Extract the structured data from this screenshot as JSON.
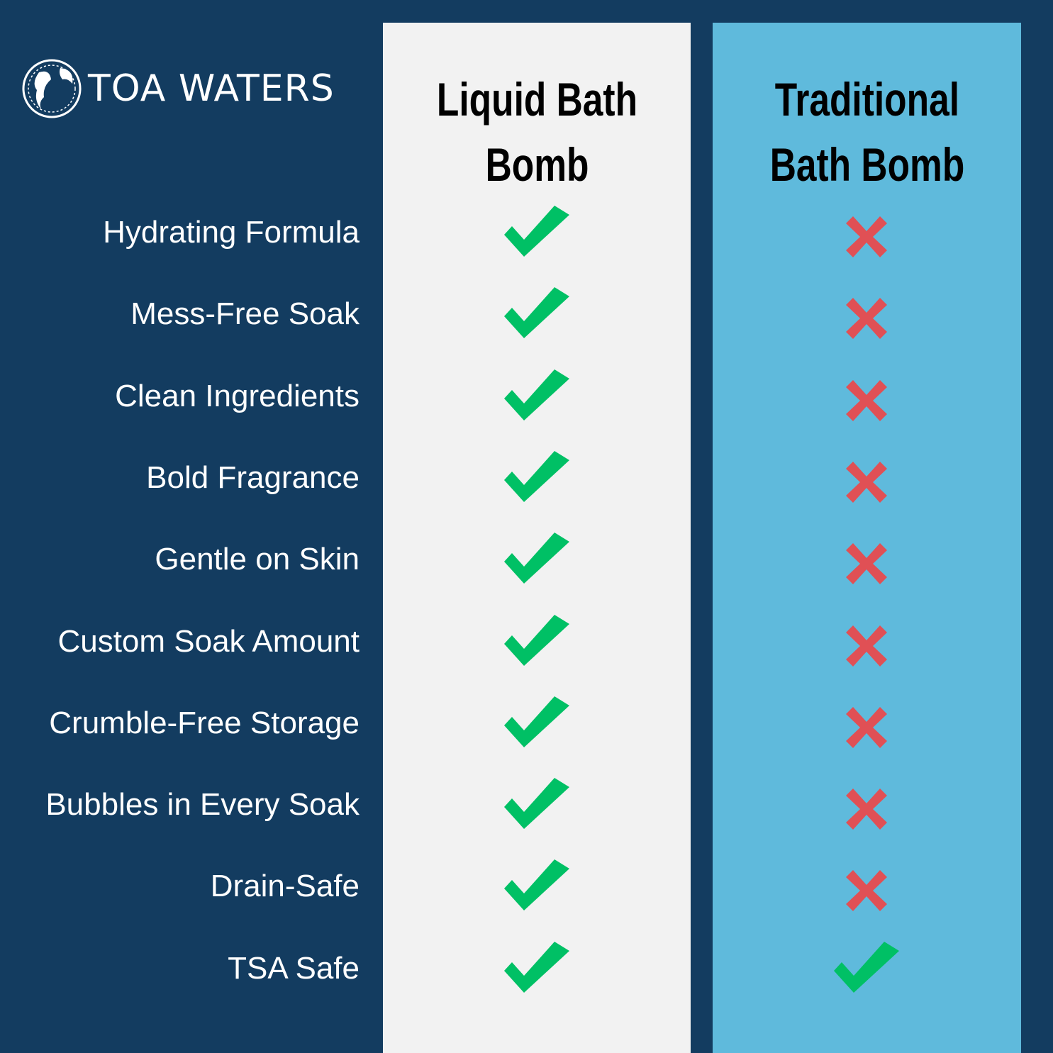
{
  "brand": {
    "name": "TOA WATERS"
  },
  "columns": [
    {
      "title_line1": "Liquid Bath",
      "title_line2": "Bomb"
    },
    {
      "title_line1": "Traditional",
      "title_line2": "Bath Bomb"
    }
  ],
  "colors": {
    "background": "#133c60",
    "liquid_column": "#f2f2f2",
    "traditional_column": "#5fbadc",
    "check": "#00c065",
    "cross": "#e05055"
  },
  "rows": [
    {
      "feature": "Hydrating Formula",
      "liquid": "check",
      "traditional": "cross"
    },
    {
      "feature": "Mess-Free Soak",
      "liquid": "check",
      "traditional": "cross"
    },
    {
      "feature": "Clean Ingredients",
      "liquid": "check",
      "traditional": "cross"
    },
    {
      "feature": "Bold Fragrance",
      "liquid": "check",
      "traditional": "cross"
    },
    {
      "feature": "Gentle on Skin",
      "liquid": "check",
      "traditional": "cross"
    },
    {
      "feature": "Custom Soak Amount",
      "liquid": "check",
      "traditional": "cross"
    },
    {
      "feature": "Crumble-Free Storage",
      "liquid": "check",
      "traditional": "cross"
    },
    {
      "feature": "Bubbles in Every Soak",
      "liquid": "check",
      "traditional": "cross"
    },
    {
      "feature": "Drain-Safe",
      "liquid": "check",
      "traditional": "cross"
    },
    {
      "feature": "TSA Safe",
      "liquid": "check",
      "traditional": "check"
    }
  ]
}
